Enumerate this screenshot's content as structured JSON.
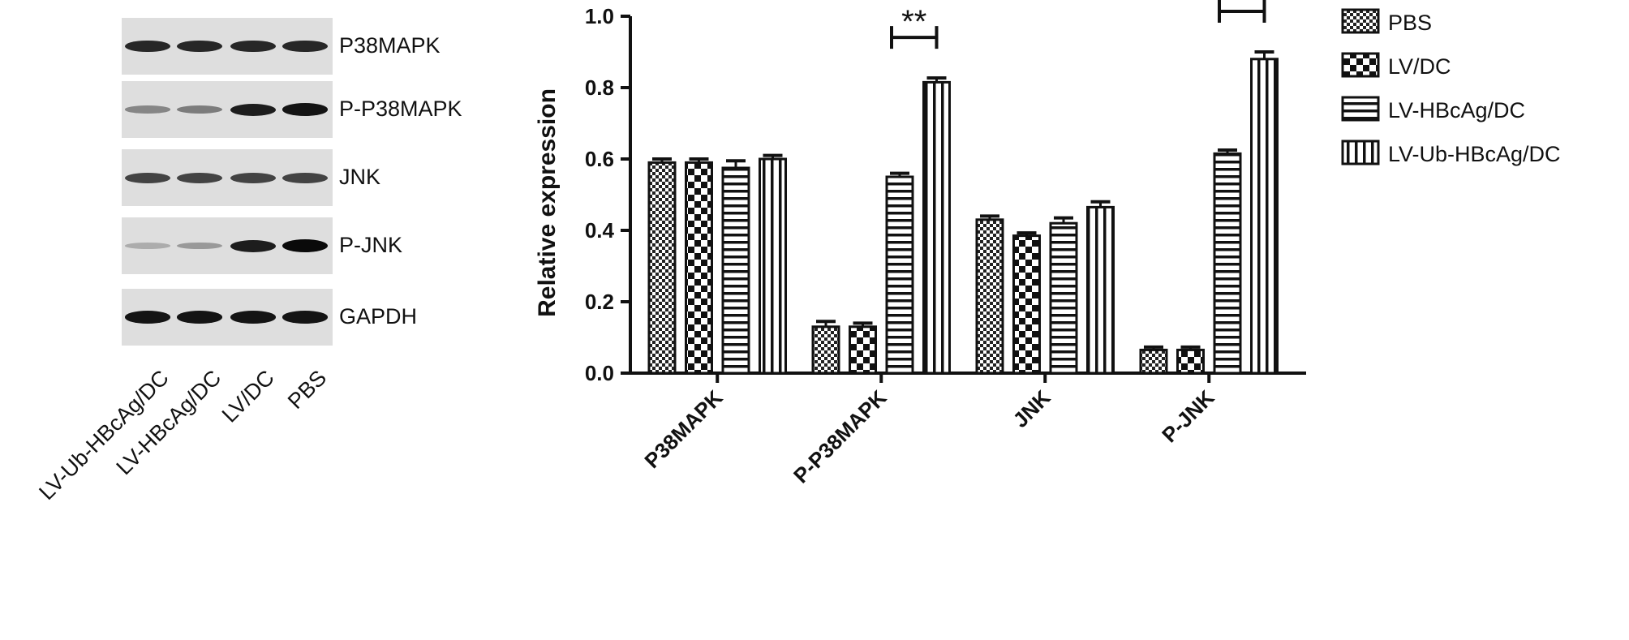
{
  "blot": {
    "rows": [
      {
        "label": "P38MAPK",
        "intensity": [
          0.85,
          0.85,
          0.85,
          0.85
        ]
      },
      {
        "label": "P-P38MAPK",
        "intensity": [
          0.35,
          0.4,
          0.9,
          0.95
        ]
      },
      {
        "label": "JNK",
        "intensity": [
          0.7,
          0.7,
          0.7,
          0.7
        ]
      },
      {
        "label": "P-JNK",
        "intensity": [
          0.15,
          0.25,
          0.9,
          1.0
        ]
      },
      {
        "label": "GAPDH",
        "intensity": [
          0.95,
          0.95,
          0.95,
          0.95
        ]
      }
    ],
    "lanes": [
      "LV-Ub-HBcAg/DC",
      "LV-HBcAg/DC",
      "LV/DC",
      "PBS"
    ]
  },
  "chart_data": {
    "type": "bar",
    "ylabel": "Relative expression",
    "xlabel": "",
    "ylim": [
      0,
      1.0
    ],
    "yticks": [
      "0.0",
      "0.2",
      "0.4",
      "0.6",
      "0.8",
      "1.0"
    ],
    "categories": [
      "P38MAPK",
      "P-P38MAPK",
      "JNK",
      "P-JNK"
    ],
    "series": [
      {
        "name": "PBS",
        "pattern": "dots",
        "values": [
          0.59,
          0.13,
          0.43,
          0.065
        ],
        "errors": [
          0.01,
          0.015,
          0.01,
          0.008
        ]
      },
      {
        "name": "LV/DC",
        "pattern": "checker",
        "values": [
          0.59,
          0.13,
          0.385,
          0.065
        ],
        "errors": [
          0.01,
          0.01,
          0.008,
          0.008
        ]
      },
      {
        "name": "LV-HBcAg/DC",
        "pattern": "hlines",
        "values": [
          0.575,
          0.55,
          0.42,
          0.615
        ],
        "errors": [
          0.02,
          0.01,
          0.015,
          0.01
        ]
      },
      {
        "name": "LV-Ub-HBcAg/DC",
        "pattern": "vlines",
        "values": [
          0.6,
          0.815,
          0.465,
          0.88
        ],
        "errors": [
          0.01,
          0.012,
          0.015,
          0.02
        ]
      }
    ],
    "significance": [
      {
        "category": "P-P38MAPK",
        "label": "**"
      },
      {
        "category": "P-JNK",
        "label": "**"
      }
    ],
    "legend_position": "right"
  }
}
